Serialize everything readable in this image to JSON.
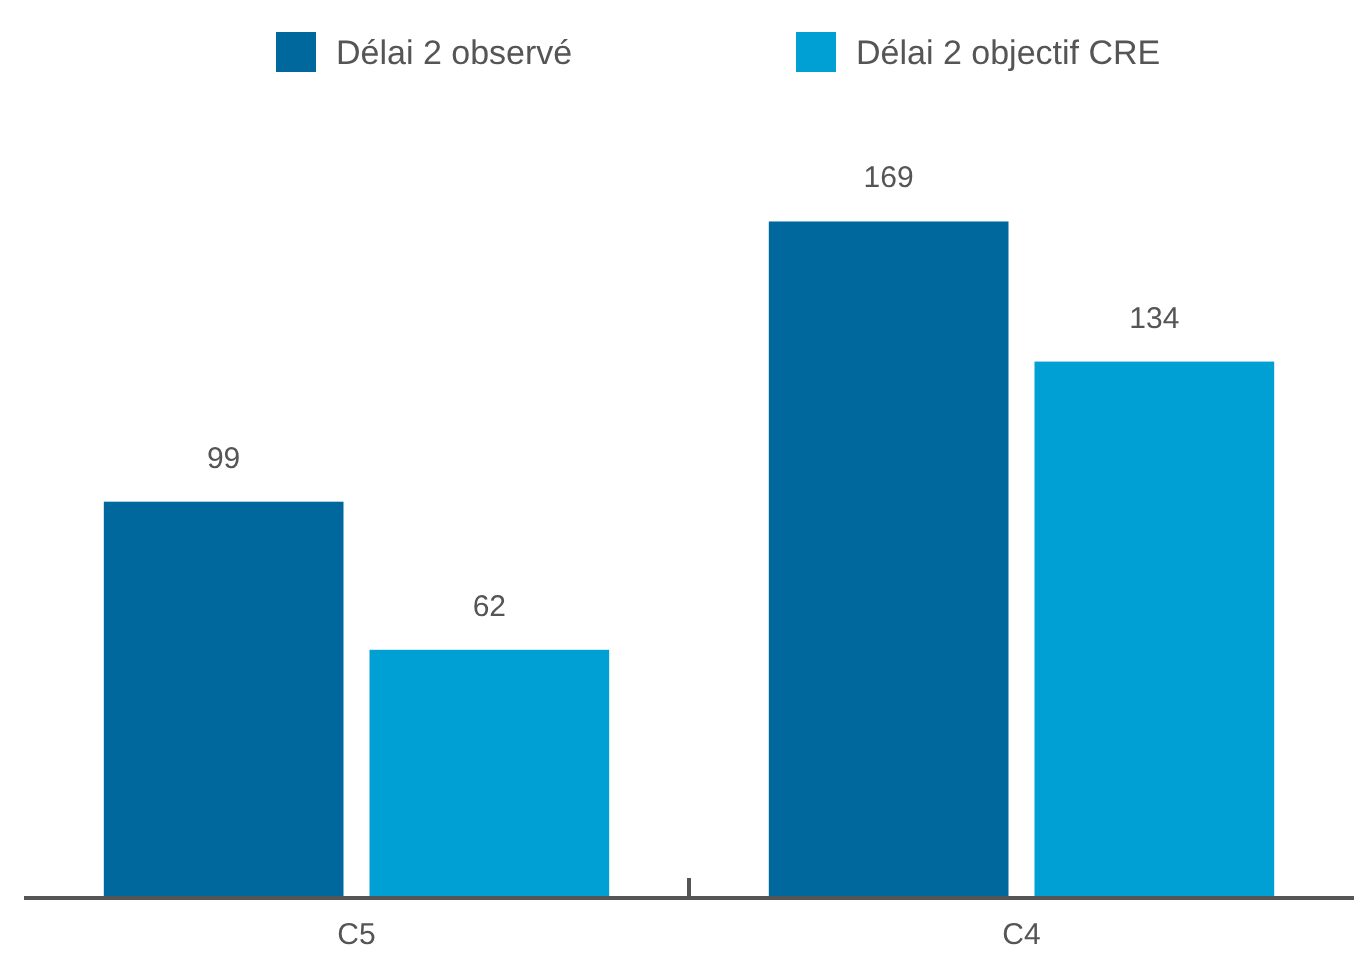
{
  "chart_data": {
    "type": "bar",
    "categories": [
      "C5",
      "C4"
    ],
    "series": [
      {
        "name": "Délai 2 observé",
        "color": "#00689d",
        "values": [
          99,
          169
        ]
      },
      {
        "name": "Délai 2 objectif CRE",
        "color": "#009fd4",
        "values": [
          62,
          134
        ]
      }
    ],
    "data_labels": true,
    "legend": "top",
    "tick_labels": "x"
  }
}
